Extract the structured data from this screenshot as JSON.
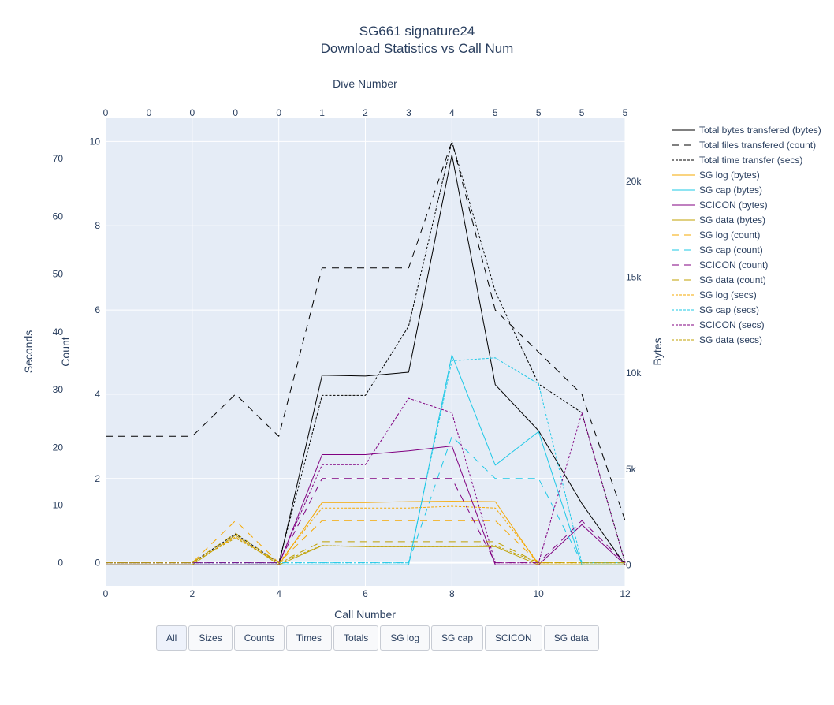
{
  "chart_data": {
    "type": "line",
    "title": "SG661 signature24",
    "subtitle": "Download Statistics vs Call Num",
    "xlabel": "Call Number",
    "x2label": "Dive Number",
    "ylabel_seconds": "Seconds",
    "ylabel_count": "Count",
    "ylabel_bytes": "Bytes",
    "x": [
      0,
      1,
      2,
      3,
      4,
      5,
      6,
      7,
      8,
      9,
      10,
      11,
      12
    ],
    "xlim": [
      0,
      12
    ],
    "x_ticks": [
      0,
      2,
      4,
      6,
      8,
      10,
      12
    ],
    "dive_ticks": [
      0,
      0,
      0,
      0,
      0,
      1,
      2,
      3,
      4,
      5,
      5,
      5,
      5
    ],
    "seconds_lim": [
      -4,
      77
    ],
    "seconds_ticks": [
      0,
      10,
      20,
      30,
      40,
      50,
      60,
      70
    ],
    "count_lim": [
      -0.55,
      10.55
    ],
    "count_ticks": [
      0,
      2,
      4,
      6,
      8,
      10
    ],
    "bytes_lim": [
      -1100,
      23300
    ],
    "bytes_ticks": [
      0,
      5000,
      10000,
      15000,
      20000
    ],
    "bytes_tick_labels": [
      "0",
      "5k",
      "10k",
      "15k",
      "20k"
    ],
    "grid": true,
    "legend_position": "right",
    "series": [
      {
        "name": "Total bytes transfered (bytes)",
        "axis": "bytes",
        "color": "#000000",
        "dash": "solid",
        "values": [
          0,
          0,
          0,
          0,
          0,
          9900,
          9850,
          10050,
          21400,
          9400,
          7000,
          3200,
          0
        ]
      },
      {
        "name": "Total files transfered (count)",
        "axis": "count",
        "color": "#000000",
        "dash": "long",
        "values": [
          3,
          3,
          3,
          4,
          3,
          7,
          7,
          7,
          10,
          6,
          5,
          4,
          1
        ]
      },
      {
        "name": "Total time transfer (secs)",
        "axis": "seconds",
        "color": "#000000",
        "dash": "dot",
        "values": [
          0,
          0,
          0,
          5,
          0,
          29,
          29,
          41,
          73,
          47,
          31,
          26,
          0
        ]
      },
      {
        "name": "SG log (bytes)",
        "axis": "bytes",
        "color": "#f5a800",
        "dash": "solid",
        "values": [
          0,
          0,
          0,
          0,
          0,
          3250,
          3250,
          3300,
          3320,
          3300,
          0,
          0,
          0
        ]
      },
      {
        "name": "SG cap (bytes)",
        "axis": "bytes",
        "color": "#1ec8e6",
        "dash": "solid",
        "values": [
          0,
          0,
          0,
          0,
          0,
          0,
          0,
          0,
          10950,
          5200,
          6950,
          0,
          0
        ]
      },
      {
        "name": "SCICON (bytes)",
        "axis": "bytes",
        "color": "#800080",
        "dash": "solid",
        "values": [
          0,
          0,
          0,
          0,
          0,
          5750,
          5750,
          5950,
          6200,
          0,
          0,
          2100,
          0
        ]
      },
      {
        "name": "SG data (bytes)",
        "axis": "bytes",
        "color": "#c0a000",
        "dash": "solid",
        "values": [
          0,
          0,
          0,
          1550,
          0,
          1000,
          950,
          950,
          950,
          950,
          0,
          0,
          0
        ]
      },
      {
        "name": "SG log (count)",
        "axis": "count",
        "color": "#f5a800",
        "dash": "long",
        "values": [
          0,
          0,
          0,
          1,
          0,
          1,
          1,
          1,
          1,
          1,
          0,
          0,
          0
        ]
      },
      {
        "name": "SG cap (count)",
        "axis": "count",
        "color": "#1ec8e6",
        "dash": "long",
        "values": [
          0,
          0,
          0,
          0,
          0,
          0,
          0,
          0,
          3,
          2,
          2,
          0,
          0
        ]
      },
      {
        "name": "SCICON (count)",
        "axis": "count",
        "color": "#800080",
        "dash": "long",
        "values": [
          0,
          0,
          0,
          0,
          0,
          2,
          2,
          2,
          2,
          0,
          0,
          1,
          0
        ]
      },
      {
        "name": "SG data (count)",
        "axis": "count",
        "color": "#c0a000",
        "dash": "long",
        "values": [
          0,
          0,
          0,
          0.7,
          0,
          0.5,
          0.5,
          0.5,
          0.5,
          0.5,
          0,
          0,
          0
        ]
      },
      {
        "name": "SG log (secs)",
        "axis": "seconds",
        "color": "#f5a800",
        "dash": "dot",
        "values": [
          0,
          0,
          0,
          4.5,
          0,
          9.5,
          9.5,
          9.5,
          9.8,
          9.5,
          0,
          0,
          0
        ]
      },
      {
        "name": "SG cap (secs)",
        "axis": "seconds",
        "color": "#1ec8e6",
        "dash": "dot",
        "values": [
          0,
          0,
          0,
          0,
          0,
          0,
          0,
          0,
          35,
          35.5,
          31,
          0,
          0
        ]
      },
      {
        "name": "SCICON (secs)",
        "axis": "seconds",
        "color": "#800080",
        "dash": "dot",
        "values": [
          0,
          0,
          0,
          0,
          0,
          17,
          17,
          28.5,
          26,
          0,
          0,
          26,
          0
        ]
      },
      {
        "name": "SG data (secs)",
        "axis": "seconds",
        "color": "#c0a000",
        "dash": "dot",
        "values": [
          0,
          0,
          0,
          4.3,
          0,
          3,
          2.8,
          2.8,
          2.8,
          3,
          0,
          0,
          0
        ]
      }
    ]
  },
  "buttons": [
    {
      "label": "All"
    },
    {
      "label": "Sizes"
    },
    {
      "label": "Counts"
    },
    {
      "label": "Times"
    },
    {
      "label": "Totals"
    },
    {
      "label": "SG log"
    },
    {
      "label": "SG cap"
    },
    {
      "label": "SCICON"
    },
    {
      "label": "SG data"
    }
  ]
}
